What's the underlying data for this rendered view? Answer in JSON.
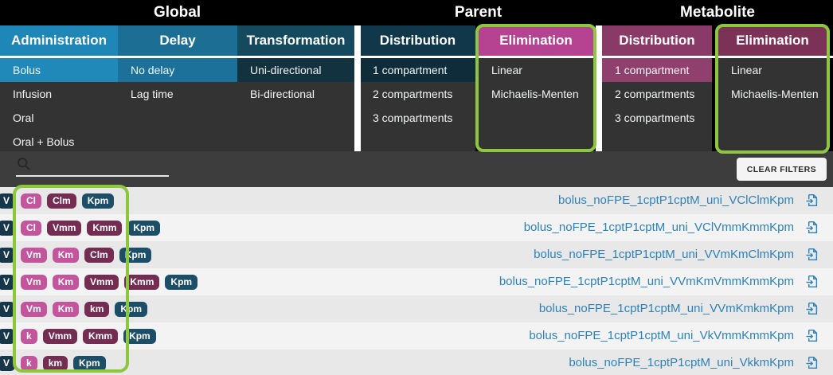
{
  "colors": {
    "menu_item_bg": "#333333",
    "filter_bar_bg": "#3d3d3d",
    "highlight_green": "#8dc63f",
    "link_blue": "#2e81b5",
    "badge_navy": "#16364a",
    "badge_pink": "#c2559c",
    "badge_plum": "#742c53",
    "badge_teal": "#1d4e68",
    "row_odd": "#e8e8e8",
    "row_even": "#f3f3f3",
    "administration_blue": "#1f86b8",
    "parent_elimination_magenta": "#b64392",
    "metabolite_plum": "#8a3a66"
  },
  "sections": [
    {
      "title": "Global",
      "columns": [
        {
          "label": "Administration",
          "header_bg": "#1f86b8",
          "selected_bg": "#2189ba",
          "selected_index": 0,
          "items": [
            "Bolus",
            "Infusion",
            "Oral",
            "Oral + Bolus"
          ]
        },
        {
          "label": "Delay",
          "header_bg": "#1c6e95",
          "selected_bg": "#1b7199",
          "selected_index": 0,
          "items": [
            "No delay",
            "Lag time"
          ]
        },
        {
          "label": "Transformation",
          "header_bg": "#154a5e",
          "selected_bg": "#13323f",
          "selected_index": 0,
          "items": [
            "Uni-directional",
            "Bi-directional"
          ]
        }
      ]
    },
    {
      "title": "Parent",
      "columns": [
        {
          "label": "Distribution",
          "header_bg": "#10374a",
          "selected_bg": "#0e2c3a",
          "selected_index": 0,
          "items": [
            "1 compartment",
            "2 compartments",
            "3 compartments"
          ]
        },
        {
          "label": "Elimination",
          "header_bg": "#b64392",
          "selected_index": -1,
          "highlighted": true,
          "items": [
            "Linear",
            "Michaelis-Menten"
          ]
        }
      ]
    },
    {
      "title": "Metabolite",
      "columns": [
        {
          "label": "Distribution",
          "header_bg": "#8a3a66",
          "selected_bg": "#90406c",
          "selected_index": 0,
          "items": [
            "1 compartment",
            "2 compartments",
            "3 compartments"
          ]
        },
        {
          "label": "Elimination",
          "header_bg": "#7c3157",
          "selected_index": -1,
          "highlighted": true,
          "items": [
            "Linear",
            "Michaelis-Menten"
          ]
        }
      ]
    }
  ],
  "filter": {
    "search_value": "",
    "clear_button_label": "CLEAR FILTERS"
  },
  "icons": {
    "search": "magnifier",
    "load_model": "document-with-import-arrow"
  },
  "models": [
    {
      "badges": [
        [
          "V",
          "navy"
        ],
        [
          "Cl",
          "pink"
        ],
        [
          "Clm",
          "plum"
        ],
        [
          "Kpm",
          "teal"
        ]
      ],
      "name": "bolus_noFPE_1cptP1cptM_uni_VClClmKpm"
    },
    {
      "badges": [
        [
          "V",
          "navy"
        ],
        [
          "Cl",
          "pink"
        ],
        [
          "Vmm",
          "plum"
        ],
        [
          "Kmm",
          "plum"
        ],
        [
          "Kpm",
          "teal"
        ]
      ],
      "name": "bolus_noFPE_1cptP1cptM_uni_VClVmmKmmKpm"
    },
    {
      "badges": [
        [
          "V",
          "navy"
        ],
        [
          "Vm",
          "pink"
        ],
        [
          "Km",
          "pink"
        ],
        [
          "Clm",
          "plum"
        ],
        [
          "Kpm",
          "teal"
        ]
      ],
      "name": "bolus_noFPE_1cptP1cptM_uni_VVmKmClmKpm"
    },
    {
      "badges": [
        [
          "V",
          "navy"
        ],
        [
          "Vm",
          "pink"
        ],
        [
          "Km",
          "pink"
        ],
        [
          "Vmm",
          "plum"
        ],
        [
          "Kmm",
          "plum"
        ],
        [
          "Kpm",
          "teal"
        ]
      ],
      "name": "bolus_noFPE_1cptP1cptM_uni_VVmKmVmmKmmKpm"
    },
    {
      "badges": [
        [
          "V",
          "navy"
        ],
        [
          "Vm",
          "pink"
        ],
        [
          "Km",
          "pink"
        ],
        [
          "km",
          "plum"
        ],
        [
          "Kpm",
          "teal"
        ]
      ],
      "name": "bolus_noFPE_1cptP1cptM_uni_VVmKmkmKpm"
    },
    {
      "badges": [
        [
          "V",
          "navy"
        ],
        [
          "k",
          "pink"
        ],
        [
          "Vmm",
          "plum"
        ],
        [
          "Kmm",
          "plum"
        ],
        [
          "Kpm",
          "teal"
        ]
      ],
      "name": "bolus_noFPE_1cptP1cptM_uni_VkVmmKmmKpm"
    },
    {
      "badges": [
        [
          "V",
          "navy"
        ],
        [
          "k",
          "pink"
        ],
        [
          "km",
          "plum"
        ],
        [
          "Kpm",
          "teal"
        ]
      ],
      "name": "bolus_noFPE_1cptP1cptM_uni_VkkmKpm"
    }
  ]
}
